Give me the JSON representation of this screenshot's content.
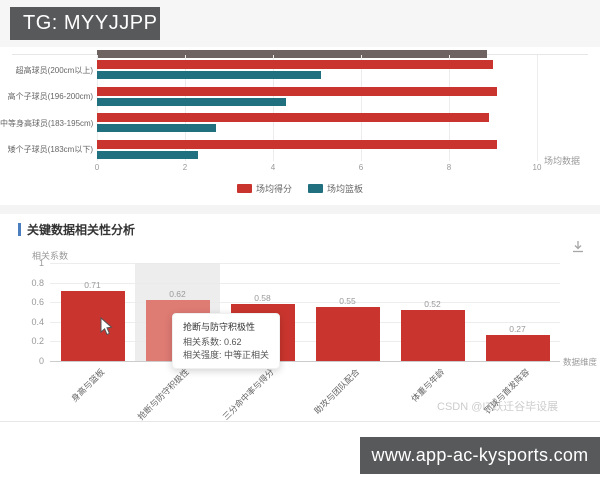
{
  "overlays": {
    "tg_label": "TG: MYYJJPP",
    "site_label": "www.app-ac-kysports.com"
  },
  "watermark": "CSDN @IT跃迁谷毕设展",
  "tooltip": {
    "title": "抢断与防守积极性",
    "rows": [
      "相关系数: 0.62",
      "相关强度: 中等正相关"
    ]
  },
  "chart_data": [
    {
      "type": "bar",
      "orientation": "horizontal",
      "title": "",
      "categories": [
        "超高球员(200cm以上)",
        "高个子球员(196-200cm)",
        "中等身高球员(183-195cm)",
        "矮个子球员(183cm以下)"
      ],
      "series": [
        {
          "name": "场均得分",
          "color": "#c9352e",
          "values": [
            9.0,
            9.1,
            8.9,
            9.1
          ]
        },
        {
          "name": "场均篮板",
          "color": "#20707f",
          "values": [
            5.1,
            4.3,
            2.7,
            2.3
          ]
        }
      ],
      "xlabel": "场均数据",
      "xlim": [
        0,
        10
      ],
      "xticks": [
        0,
        2,
        4,
        6,
        8,
        10
      ],
      "legend_position": "bottom",
      "grid": true
    },
    {
      "type": "bar",
      "title": "关键数据相关性分析",
      "categories": [
        "身高与篮板",
        "抢断与防守积极性",
        "三分命中率与得分",
        "助攻与团队配合",
        "体重与年龄",
        "罚球与首发阵容"
      ],
      "values": [
        0.71,
        0.62,
        0.58,
        0.55,
        0.52,
        0.27
      ],
      "bar_color": "#c9352e",
      "highlight_color": "#de7b73",
      "highlighted_index": 1,
      "ylabel": "相关系数",
      "xlabel": "数据维度",
      "ylim": [
        0,
        1
      ],
      "yticks": [
        0,
        0.2,
        0.4,
        0.6,
        0.8,
        1
      ],
      "grid": true
    }
  ]
}
